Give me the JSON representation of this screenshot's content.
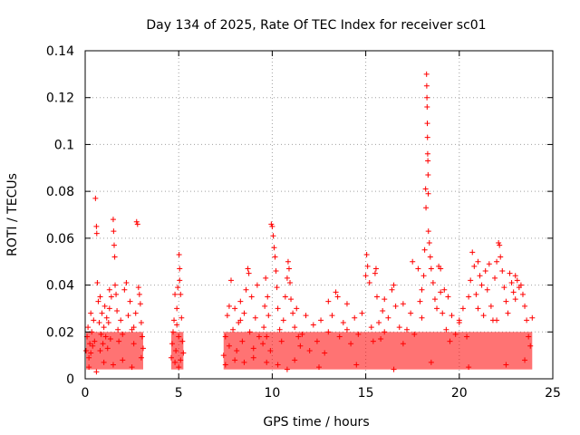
{
  "chart_data": {
    "type": "scatter",
    "title": "Day 134 of 2025, Rate Of TEC Index for receiver sc01",
    "xlabel": "GPS time / hours",
    "ylabel": "ROTI / TECUs",
    "xlim": [
      0,
      25
    ],
    "ylim": [
      0,
      0.14
    ],
    "x_ticks": [
      0,
      5,
      10,
      15,
      20,
      25
    ],
    "x_tick_labels": [
      "0",
      "5",
      "10",
      "15",
      "20",
      "25"
    ],
    "y_ticks": [
      0,
      0.02,
      0.04,
      0.06,
      0.08,
      0.1,
      0.12,
      0.14
    ],
    "y_tick_labels": [
      "0",
      "0.02",
      "0.04",
      "0.06",
      "0.08",
      "0.1",
      "0.12",
      "0.14"
    ],
    "grid": true,
    "marker": "plus",
    "color": "#ff0000",
    "series": [
      {
        "name": "ROTI",
        "points": [
          [
            0.05,
            0.012
          ],
          [
            0.1,
            0.018
          ],
          [
            0.15,
            0.022
          ],
          [
            0.2,
            0.009
          ],
          [
            0.25,
            0.015
          ],
          [
            0.3,
            0.011
          ],
          [
            0.35,
            0.02
          ],
          [
            0.4,
            0.014
          ],
          [
            0.45,
            0.025
          ],
          [
            0.5,
            0.016
          ],
          [
            0.55,
            0.077
          ],
          [
            0.6,
            0.065
          ],
          [
            0.62,
            0.062
          ],
          [
            0.65,
            0.041
          ],
          [
            0.7,
            0.033
          ],
          [
            0.75,
            0.024
          ],
          [
            0.8,
            0.012
          ],
          [
            0.85,
            0.019
          ],
          [
            0.9,
            0.028
          ],
          [
            0.95,
            0.015
          ],
          [
            1.0,
            0.022
          ],
          [
            1.05,
            0.031
          ],
          [
            1.1,
            0.018
          ],
          [
            1.15,
            0.026
          ],
          [
            1.2,
            0.013
          ],
          [
            1.25,
            0.024
          ],
          [
            1.3,
            0.03
          ],
          [
            1.35,
            0.017
          ],
          [
            1.4,
            0.035
          ],
          [
            1.5,
            0.068
          ],
          [
            1.52,
            0.063
          ],
          [
            1.55,
            0.057
          ],
          [
            1.58,
            0.052
          ],
          [
            1.6,
            0.04
          ],
          [
            1.65,
            0.036
          ],
          [
            1.7,
            0.029
          ],
          [
            1.75,
            0.021
          ],
          [
            1.8,
            0.016
          ],
          [
            1.9,
            0.025
          ],
          [
            2.0,
            0.019
          ],
          [
            2.1,
            0.038
          ],
          [
            2.2,
            0.041
          ],
          [
            2.3,
            0.027
          ],
          [
            2.4,
            0.033
          ],
          [
            2.5,
            0.021
          ],
          [
            2.6,
            0.015
          ],
          [
            2.7,
            0.028
          ],
          [
            2.75,
            0.067
          ],
          [
            2.8,
            0.066
          ],
          [
            2.85,
            0.039
          ],
          [
            2.9,
            0.036
          ],
          [
            2.95,
            0.032
          ],
          [
            3.0,
            0.024
          ],
          [
            3.05,
            0.018
          ],
          [
            3.1,
            0.013
          ],
          [
            0.2,
            0.005
          ],
          [
            0.6,
            0.003
          ],
          [
            1.0,
            0.007
          ],
          [
            1.5,
            0.006
          ],
          [
            2.0,
            0.008
          ],
          [
            2.5,
            0.005
          ],
          [
            3.0,
            0.009
          ],
          [
            0.3,
            0.028
          ],
          [
            0.8,
            0.035
          ],
          [
            1.3,
            0.038
          ],
          [
            2.6,
            0.022
          ],
          [
            4.6,
            0.009
          ],
          [
            4.65,
            0.015
          ],
          [
            4.7,
            0.02
          ],
          [
            4.75,
            0.025
          ],
          [
            4.8,
            0.036
          ],
          [
            4.85,
            0.012
          ],
          [
            4.9,
            0.03
          ],
          [
            4.95,
            0.039
          ],
          [
            5.0,
            0.018
          ],
          [
            5.02,
            0.053
          ],
          [
            5.05,
            0.047
          ],
          [
            5.1,
            0.036
          ],
          [
            5.15,
            0.026
          ],
          [
            5.2,
            0.016
          ],
          [
            5.25,
            0.011
          ],
          [
            5.0,
            0.005
          ],
          [
            4.8,
            0.007
          ],
          [
            5.1,
            0.008
          ],
          [
            5.05,
            0.042
          ],
          [
            4.9,
            0.023
          ],
          [
            7.4,
            0.01
          ],
          [
            7.5,
            0.018
          ],
          [
            7.6,
            0.027
          ],
          [
            7.7,
            0.014
          ],
          [
            7.8,
            0.042
          ],
          [
            7.9,
            0.021
          ],
          [
            8.0,
            0.03
          ],
          [
            8.1,
            0.012
          ],
          [
            8.2,
            0.024
          ],
          [
            8.3,
            0.033
          ],
          [
            8.4,
            0.016
          ],
          [
            8.5,
            0.028
          ],
          [
            8.6,
            0.038
          ],
          [
            8.7,
            0.047
          ],
          [
            8.75,
            0.045
          ],
          [
            8.8,
            0.02
          ],
          [
            8.9,
            0.035
          ],
          [
            9.0,
            0.013
          ],
          [
            9.1,
            0.026
          ],
          [
            9.2,
            0.04
          ],
          [
            9.3,
            0.018
          ],
          [
            7.5,
            0.006
          ],
          [
            8.0,
            0.008
          ],
          [
            8.5,
            0.007
          ],
          [
            9.0,
            0.009
          ],
          [
            7.7,
            0.031
          ],
          [
            8.3,
            0.025
          ],
          [
            9.5,
            0.015
          ],
          [
            9.55,
            0.022
          ],
          [
            9.6,
            0.031
          ],
          [
            9.65,
            0.043
          ],
          [
            9.7,
            0.018
          ],
          [
            9.75,
            0.035
          ],
          [
            9.8,
            0.027
          ],
          [
            9.9,
            0.012
          ],
          [
            9.95,
            0.066
          ],
          [
            10.0,
            0.065
          ],
          [
            10.05,
            0.061
          ],
          [
            10.1,
            0.056
          ],
          [
            10.15,
            0.052
          ],
          [
            10.2,
            0.046
          ],
          [
            10.25,
            0.039
          ],
          [
            10.3,
            0.03
          ],
          [
            10.4,
            0.021
          ],
          [
            10.5,
            0.016
          ],
          [
            10.6,
            0.025
          ],
          [
            10.7,
            0.035
          ],
          [
            10.8,
            0.043
          ],
          [
            10.85,
            0.05
          ],
          [
            10.9,
            0.047
          ],
          [
            10.95,
            0.041
          ],
          [
            11.0,
            0.034
          ],
          [
            11.1,
            0.028
          ],
          [
            11.2,
            0.022
          ],
          [
            11.3,
            0.03
          ],
          [
            11.4,
            0.018
          ],
          [
            11.5,
            0.014
          ],
          [
            9.7,
            0.007
          ],
          [
            10.3,
            0.006
          ],
          [
            10.8,
            0.004
          ],
          [
            11.2,
            0.008
          ],
          [
            11.6,
            0.019
          ],
          [
            11.8,
            0.027
          ],
          [
            12.0,
            0.012
          ],
          [
            12.2,
            0.023
          ],
          [
            12.4,
            0.016
          ],
          [
            12.6,
            0.025
          ],
          [
            12.8,
            0.011
          ],
          [
            13.0,
            0.02
          ],
          [
            13.2,
            0.027
          ],
          [
            13.4,
            0.037
          ],
          [
            13.5,
            0.035
          ],
          [
            13.6,
            0.018
          ],
          [
            13.8,
            0.024
          ],
          [
            14.0,
            0.032
          ],
          [
            14.2,
            0.015
          ],
          [
            14.4,
            0.026
          ],
          [
            14.6,
            0.019
          ],
          [
            14.8,
            0.028
          ],
          [
            15.0,
            0.044
          ],
          [
            15.05,
            0.053
          ],
          [
            15.1,
            0.048
          ],
          [
            15.2,
            0.041
          ],
          [
            15.3,
            0.022
          ],
          [
            15.4,
            0.016
          ],
          [
            15.5,
            0.045
          ],
          [
            15.55,
            0.047
          ],
          [
            15.6,
            0.035
          ],
          [
            15.7,
            0.024
          ],
          [
            15.8,
            0.017
          ],
          [
            15.9,
            0.029
          ],
          [
            16.0,
            0.02
          ],
          [
            16.2,
            0.026
          ],
          [
            16.4,
            0.038
          ],
          [
            16.5,
            0.04
          ],
          [
            16.6,
            0.031
          ],
          [
            16.8,
            0.022
          ],
          [
            17.0,
            0.015
          ],
          [
            17.2,
            0.021
          ],
          [
            17.4,
            0.028
          ],
          [
            17.5,
            0.05
          ],
          [
            17.6,
            0.019
          ],
          [
            17.8,
            0.047
          ],
          [
            17.9,
            0.033
          ],
          [
            18.0,
            0.026
          ],
          [
            18.1,
            0.044
          ],
          [
            18.15,
            0.055
          ],
          [
            18.2,
            0.081
          ],
          [
            18.22,
            0.073
          ],
          [
            18.25,
            0.13
          ],
          [
            18.26,
            0.125
          ],
          [
            18.27,
            0.12
          ],
          [
            18.28,
            0.116
          ],
          [
            18.29,
            0.109
          ],
          [
            18.3,
            0.103
          ],
          [
            18.31,
            0.096
          ],
          [
            18.32,
            0.093
          ],
          [
            18.33,
            0.087
          ],
          [
            18.34,
            0.079
          ],
          [
            18.35,
            0.063
          ],
          [
            18.4,
            0.058
          ],
          [
            18.45,
            0.052
          ],
          [
            18.5,
            0.047
          ],
          [
            18.6,
            0.041
          ],
          [
            18.7,
            0.034
          ],
          [
            18.8,
            0.03
          ],
          [
            18.9,
            0.048
          ],
          [
            19.0,
            0.047
          ],
          [
            19.1,
            0.028
          ],
          [
            19.2,
            0.038
          ],
          [
            19.3,
            0.021
          ],
          [
            19.4,
            0.035
          ],
          [
            19.5,
            0.016
          ],
          [
            19.6,
            0.027
          ],
          [
            19.8,
            0.019
          ],
          [
            20.0,
            0.025
          ],
          [
            20.2,
            0.03
          ],
          [
            20.4,
            0.018
          ],
          [
            20.5,
            0.035
          ],
          [
            20.6,
            0.042
          ],
          [
            20.7,
            0.054
          ],
          [
            20.8,
            0.048
          ],
          [
            20.9,
            0.036
          ],
          [
            21.0,
            0.05
          ],
          [
            21.1,
            0.044
          ],
          [
            21.2,
            0.04
          ],
          [
            21.3,
            0.027
          ],
          [
            21.4,
            0.046
          ],
          [
            21.5,
            0.038
          ],
          [
            21.6,
            0.049
          ],
          [
            21.7,
            0.031
          ],
          [
            21.8,
            0.025
          ],
          [
            21.9,
            0.043
          ],
          [
            22.0,
            0.05
          ],
          [
            22.1,
            0.058
          ],
          [
            22.15,
            0.057
          ],
          [
            22.2,
            0.052
          ],
          [
            22.3,
            0.046
          ],
          [
            22.4,
            0.039
          ],
          [
            22.5,
            0.033
          ],
          [
            22.6,
            0.028
          ],
          [
            22.7,
            0.045
          ],
          [
            22.8,
            0.041
          ],
          [
            22.9,
            0.037
          ],
          [
            23.0,
            0.044
          ],
          [
            23.1,
            0.042
          ],
          [
            23.2,
            0.039
          ],
          [
            23.3,
            0.04
          ],
          [
            23.4,
            0.036
          ],
          [
            23.5,
            0.031
          ],
          [
            23.6,
            0.025
          ],
          [
            23.7,
            0.018
          ],
          [
            23.8,
            0.014
          ],
          [
            23.9,
            0.026
          ],
          [
            12.5,
            0.005
          ],
          [
            14.5,
            0.006
          ],
          [
            16.5,
            0.004
          ],
          [
            18.5,
            0.007
          ],
          [
            20.5,
            0.005
          ],
          [
            22.5,
            0.006
          ],
          [
            23.5,
            0.008
          ],
          [
            13.0,
            0.033
          ],
          [
            14.0,
            0.021
          ],
          [
            16.0,
            0.034
          ],
          [
            17.0,
            0.032
          ],
          [
            19.0,
            0.037
          ],
          [
            21.0,
            0.03
          ],
          [
            22.0,
            0.025
          ],
          [
            23.0,
            0.034
          ],
          [
            20.0,
            0.024
          ],
          [
            18.0,
            0.038
          ]
        ]
      }
    ]
  }
}
